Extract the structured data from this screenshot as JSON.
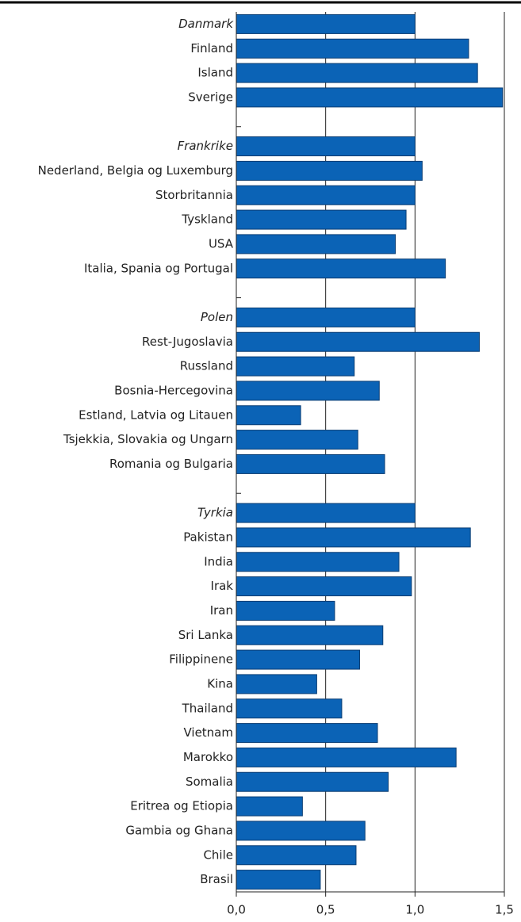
{
  "chart_data": {
    "type": "bar",
    "orientation": "horizontal",
    "color": "#0b63b6",
    "edge_color": "#0a3d73",
    "categories": [
      "Danmark",
      "Finland",
      "Island",
      "Sverige",
      null,
      "Frankrike",
      "Nederland, Belgia og Luxemburg",
      "Storbritannia",
      "Tyskland",
      "USA",
      "Italia, Spania og Portugal",
      null,
      "Polen",
      "Rest-Jugoslavia",
      "Russland",
      "Bosnia-Hercegovina",
      "Estland, Latvia og Litauen",
      "Tsjekkia, Slovakia og Ungarn",
      "Romania og Bulgaria",
      null,
      "Tyrkia",
      "Pakistan",
      "India",
      "Irak",
      "Iran",
      "Sri Lanka",
      "Filippinene",
      "Kina",
      "Thailand",
      "Vietnam",
      "Marokko",
      "Somalia",
      "Eritrea og Etiopia",
      "Gambia og Ghana",
      "Chile",
      "Brasil"
    ],
    "italic_categories": [
      0,
      5,
      12,
      20
    ],
    "values": [
      1.0,
      1.3,
      1.35,
      1.49,
      null,
      1.0,
      1.04,
      1.0,
      0.95,
      0.89,
      1.17,
      null,
      1.0,
      1.36,
      0.66,
      0.8,
      0.36,
      0.68,
      0.83,
      null,
      1.0,
      1.31,
      0.91,
      0.98,
      0.55,
      0.82,
      0.69,
      0.45,
      0.59,
      0.79,
      1.23,
      0.85,
      0.37,
      0.72,
      0.67,
      0.47
    ],
    "xlim": [
      0,
      1.5
    ],
    "xticks": [
      {
        "value": 0,
        "label": "0,0"
      },
      {
        "value": 0.5,
        "label": "0,5"
      },
      {
        "value": 1.0,
        "label": "1,0"
      },
      {
        "value": 1.5,
        "label": "1,5"
      }
    ],
    "grid": true
  }
}
